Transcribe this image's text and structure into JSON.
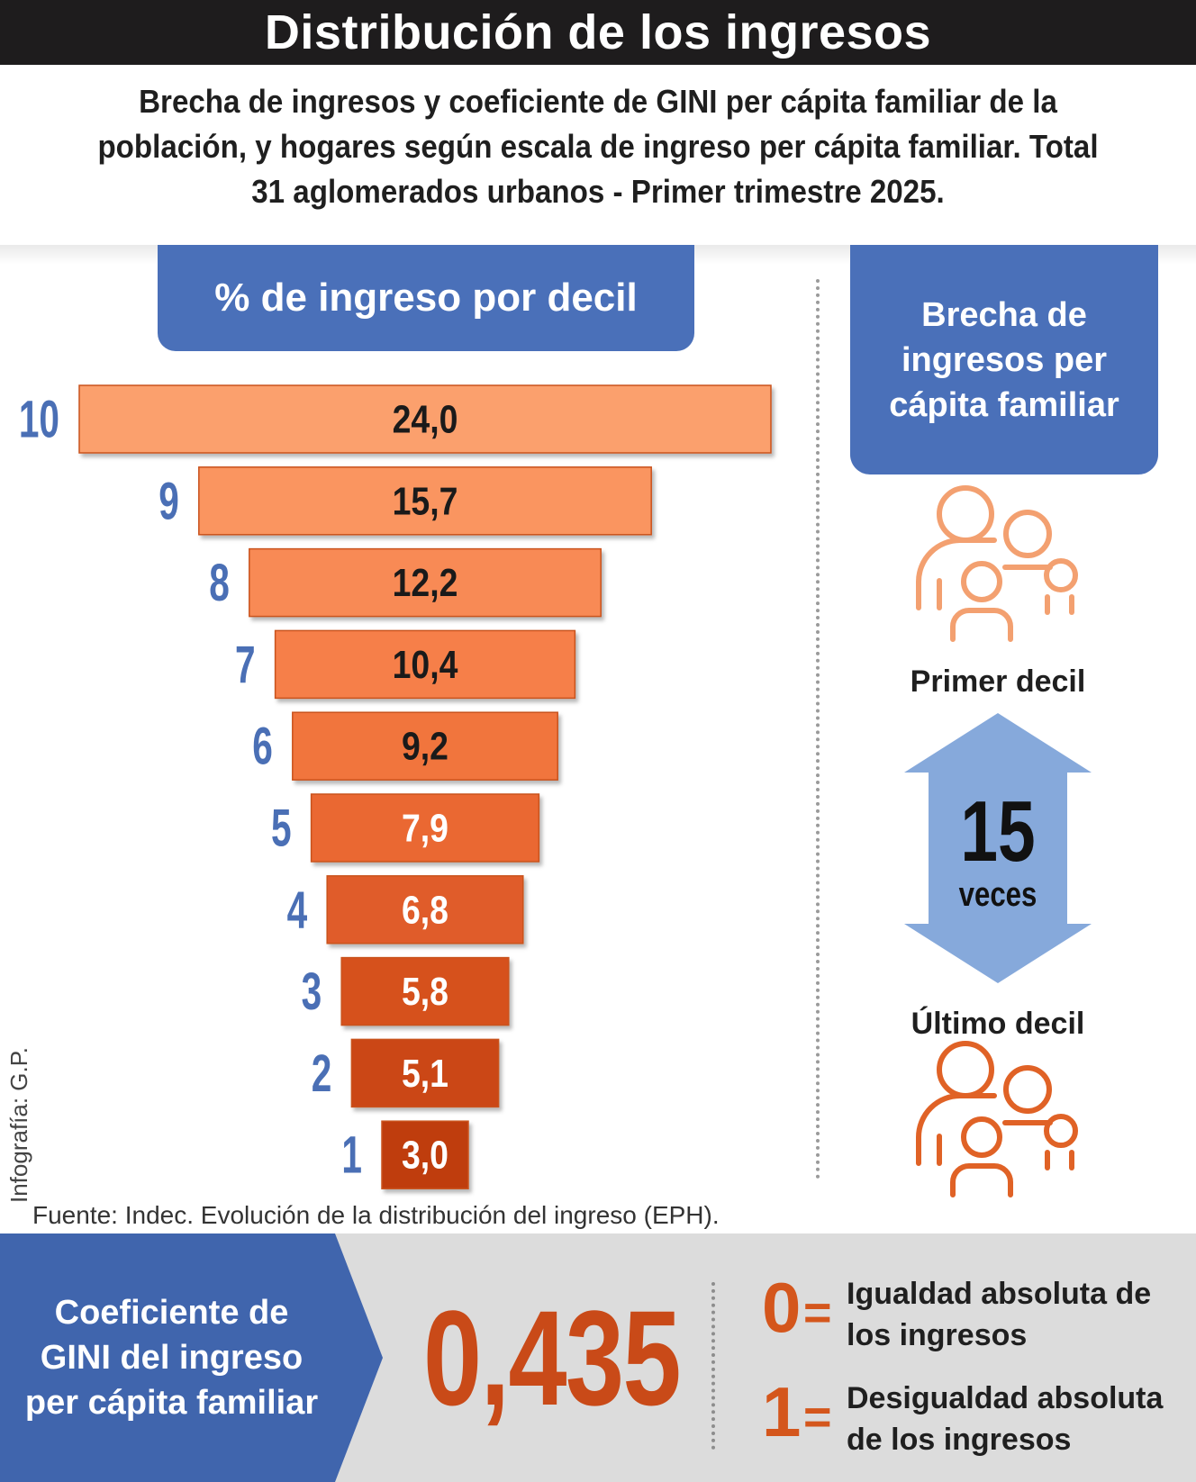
{
  "title": "Distribución de los ingresos",
  "subtitle": "Brecha de ingresos y coeficiente de GINI per cápita familiar de la población, y hogares según escala de ingreso per cápita familiar. Total 31 aglomerados urbanos - Primer trimestre 2025.",
  "chart_data": {
    "type": "bar",
    "orientation": "horizontal",
    "title": "% de ingreso por decil",
    "categories": [
      "10",
      "9",
      "8",
      "7",
      "6",
      "5",
      "4",
      "3",
      "2",
      "1"
    ],
    "values": [
      24.0,
      15.7,
      12.2,
      10.4,
      9.2,
      7.9,
      6.8,
      5.8,
      5.1,
      3.0
    ],
    "value_labels": [
      "24,0",
      "15,7",
      "12,2",
      "10,4",
      "9,2",
      "7,9",
      "6,8",
      "5,8",
      "5,1",
      "3,0"
    ],
    "bar_colors": [
      "#fba06d",
      "#fa9561",
      "#f88a55",
      "#f67f4a",
      "#f1743d",
      "#ea6833",
      "#e05c29",
      "#d6511f",
      "#cb4617",
      "#bf3c10"
    ],
    "label_colors": [
      "#1a1a1a",
      "#1a1a1a",
      "#1a1a1a",
      "#1a1a1a",
      "#1a1a1a",
      "#ffffff",
      "#ffffff",
      "#ffffff",
      "#ffffff",
      "#ffffff"
    ],
    "category_color": "#4a6fb5",
    "xlim": [
      0,
      24
    ],
    "grid": false
  },
  "gap": {
    "title": "Brecha de ingresos per cápita familiar",
    "top_label": "Primer decil",
    "value": "15",
    "unit": "veces",
    "bottom_label": "Último decil",
    "icon_top_color": "#f3a070",
    "icon_bottom_color": "#e06226",
    "arrow_color": "#86a9db"
  },
  "credit": "Infografía: G.P.",
  "source": "Fuente: Indec. Evolución de la distribución del ingreso (EPH).",
  "gini": {
    "label": "Coeficiente de GINI del ingreso per cápita familiar",
    "value": "0,435",
    "legend": [
      {
        "num": "0",
        "eq": "=",
        "text": "Igualdad absoluta de los ingresos"
      },
      {
        "num": "1",
        "eq": "=",
        "text": "Desigualdad absoluta de los ingresos"
      }
    ]
  }
}
